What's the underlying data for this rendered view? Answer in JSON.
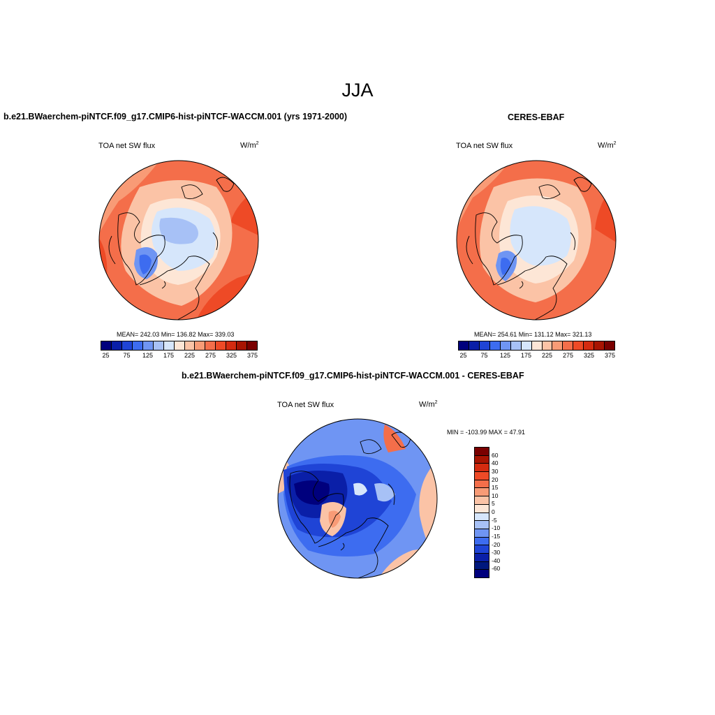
{
  "figure": {
    "title": "JJA",
    "panel_left_title": "b.e21.BWaerchem-piNTCF.f09_g17.CMIP6-hist-piNTCF-WACCM.001 (yrs 1971-2000)",
    "panel_right_title": "CERES-EBAF",
    "panel_diff_title": "b.e21.BWaerchem-piNTCF.f09_g17.CMIP6-hist-piNTCF-WACCM.001 - CERES-EBAF"
  },
  "panels": {
    "left": {
      "variable": "TOA net SW flux",
      "units_base": "W/m",
      "units_exp": "2",
      "stats": "MEAN= 242.03  Min= 136.82  Max= 339.03"
    },
    "right": {
      "variable": "TOA net SW flux",
      "units_base": "W/m",
      "units_exp": "2",
      "stats": "MEAN= 254.61  Min= 131.12  Max= 321.13"
    },
    "diff": {
      "variable": "TOA net SW flux",
      "units_base": "W/m",
      "units_exp": "2",
      "stats": "MIN = -103.99 MAX =  47.91"
    }
  },
  "colorbar_main": {
    "tick_labels": [
      "25",
      "75",
      "125",
      "175",
      "225",
      "275",
      "325",
      "375"
    ],
    "colors": [
      "#00007d",
      "#0a1fa8",
      "#1f44d6",
      "#3d6cf0",
      "#6f95f3",
      "#a7c1f6",
      "#d6e6fb",
      "#fde6d6",
      "#fbc3a6",
      "#f89b76",
      "#f46e4a",
      "#ee4a26",
      "#d42b10",
      "#a81402",
      "#7a0000"
    ]
  },
  "colorbar_diff": {
    "tick_labels": [
      "60",
      "40",
      "30",
      "20",
      "15",
      "10",
      "5",
      "0",
      "-5",
      "-10",
      "-15",
      "-20",
      "-30",
      "-40",
      "-60"
    ],
    "colors": [
      "#7a0000",
      "#a81402",
      "#d42b10",
      "#ee4a26",
      "#f46e4a",
      "#f89b76",
      "#fbc3a6",
      "#fde6d6",
      "#d6e6fb",
      "#a7c1f6",
      "#6f95f3",
      "#3d6cf0",
      "#1f44d6",
      "#0a1fa8",
      "#00187d",
      "#00007d"
    ]
  }
}
